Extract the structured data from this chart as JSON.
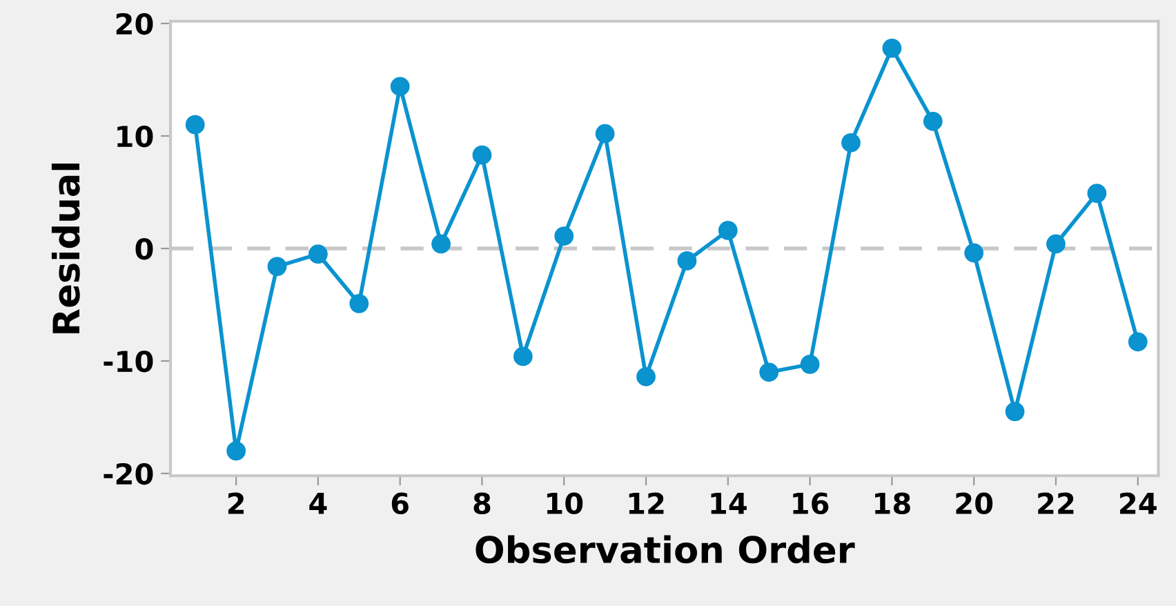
{
  "chart_data": {
    "type": "line",
    "xlabel": "Observation Order",
    "ylabel": "Residual",
    "x": [
      1,
      2,
      3,
      4,
      5,
      6,
      7,
      8,
      9,
      10,
      11,
      12,
      13,
      14,
      15,
      16,
      17,
      18,
      19,
      20,
      21,
      22,
      23,
      24
    ],
    "series": [
      {
        "color": "#0a93cf",
        "values": [
          11,
          -18,
          -1.6,
          -0.5,
          -4.9,
          14.4,
          0.4,
          8.3,
          -9.6,
          1.1,
          10.2,
          -11.4,
          -1.1,
          1.6,
          -11,
          -10.3,
          9.4,
          17.8,
          11.3,
          -0.4,
          -14.5,
          0.4,
          4.9,
          -8.3
        ]
      }
    ],
    "xlim": [
      0.4,
      24.5
    ],
    "xticks": [
      2,
      4,
      6,
      8,
      10,
      12,
      14,
      16,
      18,
      20,
      22,
      24
    ],
    "ylim": [
      -20.2,
      20.2
    ],
    "yticks": [
      {
        "value": -20,
        "label": "-20"
      },
      {
        "value": -10,
        "label": "-10"
      },
      0,
      10,
      20
    ],
    "ref_lines": [
      {
        "axis": "y",
        "value": 0,
        "color": "#c8c8c8",
        "line_style": "dashed"
      }
    ],
    "marker": "circle",
    "line_style": "solid",
    "grid": false,
    "legend": false
  }
}
